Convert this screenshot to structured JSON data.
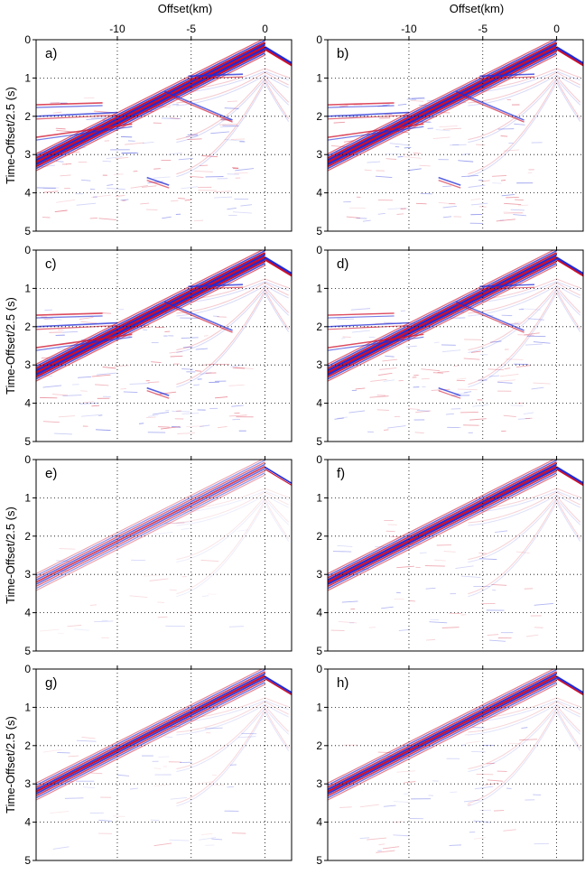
{
  "figure": {
    "x_axis_title": "Offset(km)",
    "y_axis_title": "Time-Offset/2.5 (s)",
    "x_tick_labels": [
      "-10",
      "-5",
      "0"
    ],
    "y_tick_labels": [
      "0",
      "1",
      "2",
      "3",
      "4",
      "5"
    ],
    "x_ticks_km": [
      -10,
      -5,
      0
    ],
    "y_ticks_s": [
      0,
      1,
      2,
      3,
      4,
      5
    ],
    "x_range_km": [
      -15.5,
      1.8
    ],
    "y_range_s": [
      0,
      5
    ],
    "grid": "dotted",
    "colormap": {
      "positive": "#d0102a",
      "negative": "#1f2bd6",
      "zero": "#ffffff"
    },
    "panels": [
      {
        "label": "a)",
        "strength": 1.0,
        "linear_only": false
      },
      {
        "label": "b)",
        "strength": 0.95,
        "linear_only": false
      },
      {
        "label": "c)",
        "strength": 1.0,
        "linear_only": false
      },
      {
        "label": "d)",
        "strength": 0.9,
        "linear_only": false
      },
      {
        "label": "e)",
        "strength": 0.45,
        "linear_only": true
      },
      {
        "label": "f)",
        "strength": 0.8,
        "linear_only": true
      },
      {
        "label": "g)",
        "strength": 0.7,
        "linear_only": true
      },
      {
        "label": "h)",
        "strength": 0.75,
        "linear_only": true
      }
    ]
  }
}
